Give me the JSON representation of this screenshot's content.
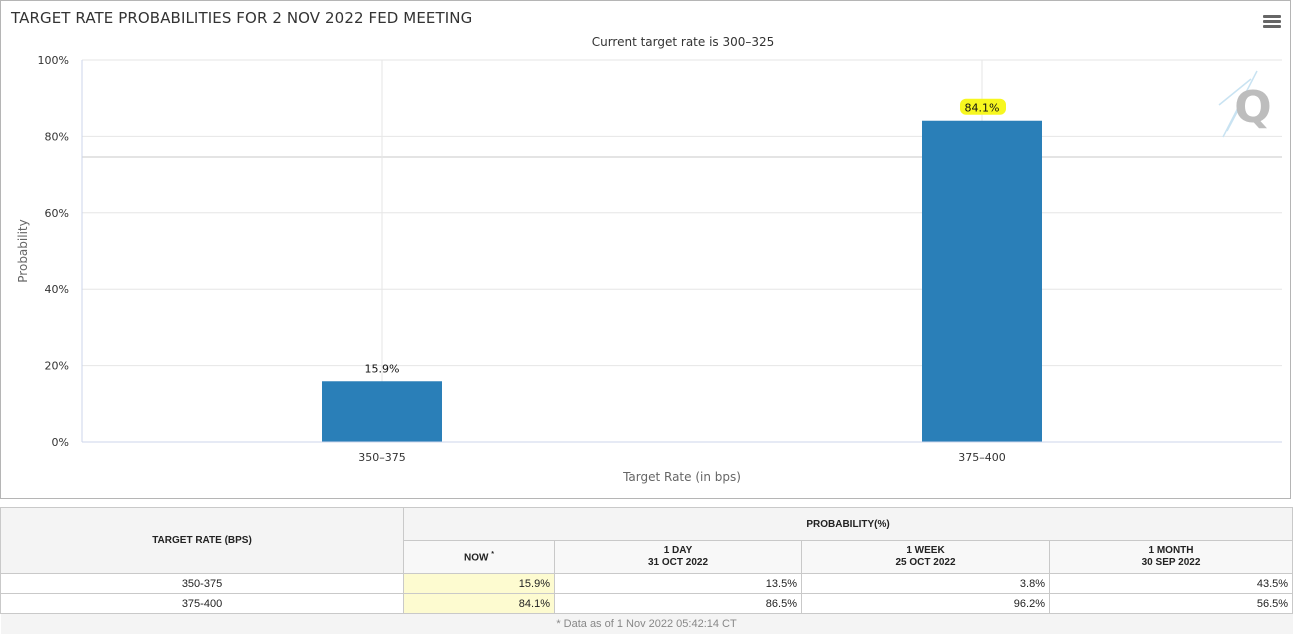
{
  "chart": {
    "title": "TARGET RATE PROBABILITIES FOR 2 NOV 2022 FED MEETING",
    "subtitle": "Current target rate is 300–325",
    "menu_icon": "hamburger-menu-icon",
    "watermark": "Q",
    "bar_color": "#2a7fb8",
    "highlight_color": "#f7f71f"
  },
  "chart_data": {
    "type": "bar",
    "categories": [
      "350–375",
      "375–400"
    ],
    "values": [
      15.9,
      84.1
    ],
    "data_labels": [
      "15.9%",
      "84.1%"
    ],
    "title": "TARGET RATE PROBABILITIES FOR 2 NOV 2022 FED MEETING",
    "subtitle": "Current target rate is 300–325",
    "xlabel": "Target Rate (in bps)",
    "ylabel": "Probability",
    "ylim": [
      0,
      100
    ],
    "yticks": [
      "0%",
      "20%",
      "40%",
      "60%",
      "80%",
      "100%"
    ],
    "grid": true
  },
  "table": {
    "target_header": "TARGET RATE (BPS)",
    "prob_header": "PROBABILITY(%)",
    "now_header": "NOW",
    "now_marker": "*",
    "cols": [
      {
        "label": "1 DAY",
        "date": "31 OCT 2022"
      },
      {
        "label": "1 WEEK",
        "date": "25 OCT 2022"
      },
      {
        "label": "1 MONTH",
        "date": "30 SEP 2022"
      }
    ],
    "rows": [
      {
        "rate": "350-375",
        "now": "15.9%",
        "v1": "13.5%",
        "v2": "3.8%",
        "v3": "43.5%"
      },
      {
        "rate": "375-400",
        "now": "84.1%",
        "v1": "86.5%",
        "v2": "96.2%",
        "v3": "56.5%"
      }
    ],
    "footnote": "* Data as of 1 Nov 2022 05:42:14 CT"
  }
}
